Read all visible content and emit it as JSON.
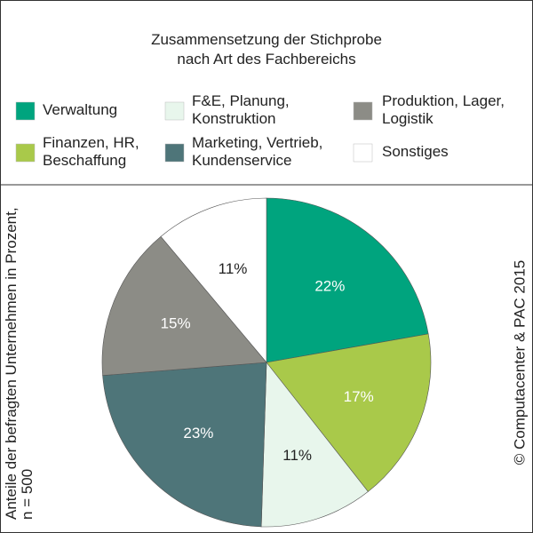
{
  "chart_data": {
    "type": "pie",
    "title": "Zusammensetzung der Stichprobe\nnach Art des Fachbereichs",
    "y_label": "Anteile der befragten Unternehmen in Prozent,\nn = 500",
    "source": "© Computacenter & PAC 2015",
    "categories": [
      "Verwaltung",
      "Finanzen, HR,\nBeschaffung",
      "F&E, Planung,\nKonstruktion",
      "Marketing, Vertrieb,\nKundenservice",
      "Produktion, Lager,\nLogistik",
      "Sonstiges"
    ],
    "values": [
      22,
      17,
      11,
      23,
      15,
      11
    ],
    "value_labels": [
      "22%",
      "17%",
      "11%",
      "23%",
      "15%",
      "11%"
    ],
    "colors": [
      "#00a47e",
      "#a9c94a",
      "#e8f6ec",
      "#4e7579",
      "#8c8c86",
      "#ffffff"
    ],
    "label_colors": [
      "#ffffff",
      "#ffffff",
      "#222222",
      "#ffffff",
      "#ffffff",
      "#222222"
    ],
    "legend_order": [
      0,
      2,
      4,
      1,
      3,
      5
    ]
  }
}
